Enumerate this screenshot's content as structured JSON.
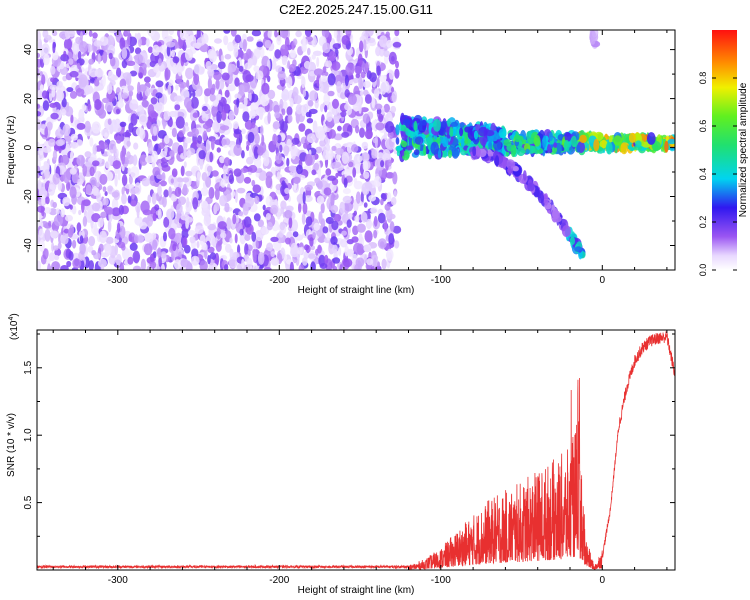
{
  "title": "C2E2.2025.247.15.00.G11",
  "chart_data": [
    {
      "type": "heatmap",
      "xlabel": "Height of straight line (km)",
      "ylabel": "Frequency (Hz)",
      "xlim": [
        -350,
        45
      ],
      "ylim": [
        -50,
        48
      ],
      "xticks": [
        -300,
        -200,
        -100,
        0
      ],
      "yticks": [
        -40,
        -20,
        0,
        20,
        40
      ],
      "colorbar": {
        "label": "Normalized spectral amplitude",
        "range": [
          0,
          1
        ],
        "ticks": [
          "0.0",
          "0.2",
          "0.4",
          "0.6",
          "0.8"
        ],
        "tick_values": [
          0,
          0.2,
          0.4,
          0.6,
          0.8
        ]
      },
      "regions": {
        "noise": {
          "x": [
            -350,
            -127
          ],
          "y": [
            -50,
            48
          ],
          "level": 0.08
        },
        "main_band_center_hz": 0,
        "upper_branch": {
          "x_start": -125,
          "y_start": 10,
          "x_end": -60,
          "y_end": 6
        },
        "lower_branch": {
          "x_start": -80,
          "y_start": -2,
          "x_end": -12,
          "y_end": -44
        },
        "trace": {
          "x_start": -127,
          "x_end": 45,
          "peak_level": 0.9
        }
      }
    },
    {
      "type": "line",
      "xlabel": "Height of straight line (km)",
      "ylabel": "SNR (10 * v/v)",
      "scale_label_base": "(x10",
      "scale_label_exp": "4",
      "scale_label_end": ")",
      "xlim": [
        -350,
        45
      ],
      "ylim": [
        0,
        1.78
      ],
      "xticks": [
        -300,
        -200,
        -100,
        0
      ],
      "yticks": [
        0.5,
        1.0,
        1.5
      ],
      "ytick_labels": [
        "0.5",
        "1.0",
        "1.5"
      ],
      "series": [
        {
          "name": "SNR",
          "color": "#e83030",
          "x": [
            -350,
            -300,
            -250,
            -200,
            -150,
            -120,
            -110,
            -100,
            -90,
            -80,
            -70,
            -60,
            -50,
            -40,
            -30,
            -20,
            -15,
            -10,
            -5,
            0,
            5,
            10,
            15,
            20,
            25,
            30,
            35,
            40,
            45
          ],
          "y": [
            0.02,
            0.02,
            0.02,
            0.02,
            0.02,
            0.02,
            0.05,
            0.1,
            0.18,
            0.25,
            0.32,
            0.36,
            0.4,
            0.45,
            0.5,
            0.55,
            0.7,
            0.15,
            0.02,
            0.1,
            0.45,
            1.05,
            1.35,
            1.55,
            1.65,
            1.7,
            1.72,
            1.73,
            1.45
          ]
        }
      ]
    }
  ]
}
